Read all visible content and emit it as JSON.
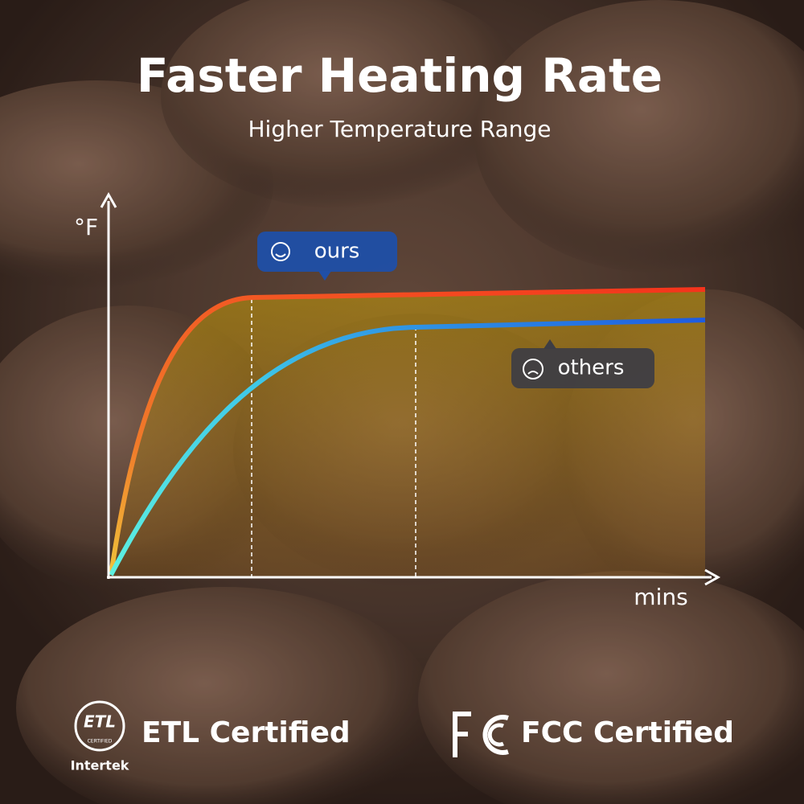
{
  "header": {
    "title": "Faster Heating Rate",
    "subtitle": "Higher Temperature Range"
  },
  "graph": {
    "y_axis_label": "°F",
    "x_axis_label": "mins",
    "ours_label": "ours",
    "others_label": "others"
  },
  "certifications": [
    {
      "logo_text": "ETL",
      "logo_subtext": "CERTIFIED",
      "logo_brand": "Intertek",
      "label": "ETL Certified"
    },
    {
      "label": "FCC Certified"
    }
  ]
}
